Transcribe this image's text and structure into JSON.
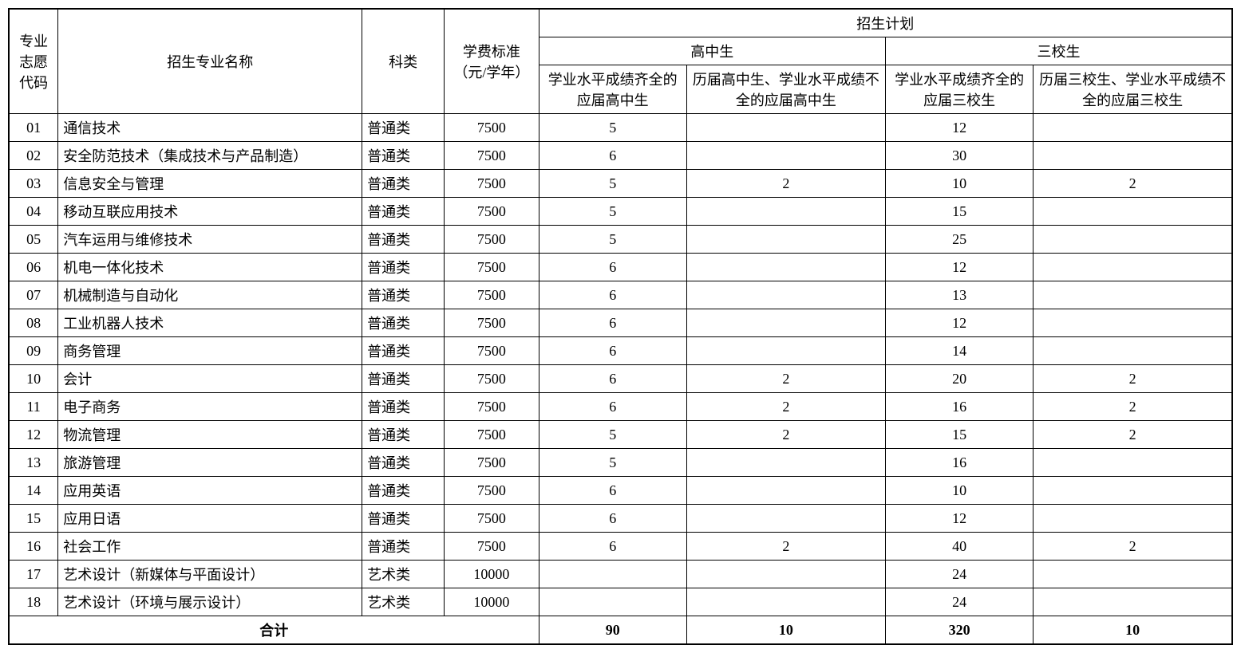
{
  "headers": {
    "code": "专业志愿代码",
    "name": "招生专业名称",
    "type": "科类",
    "fee": "学费标准（元/学年）",
    "plan": "招生计划",
    "hs": "高中生",
    "sx": "三校生",
    "hs_full": "学业水平成绩齐全的应届高中生",
    "hs_part": "历届高中生、学业水平成绩不全的应届高中生",
    "sx_full": "学业水平成绩齐全的应届三校生",
    "sx_part": "历届三校生、学业水平成绩不全的应届三校生",
    "total": "合计"
  },
  "rows": [
    {
      "code": "01",
      "name": "通信技术",
      "type": "普通类",
      "fee": "7500",
      "c1": "5",
      "c2": "",
      "c3": "12",
      "c4": ""
    },
    {
      "code": "02",
      "name": "安全防范技术（集成技术与产品制造）",
      "type": "普通类",
      "fee": "7500",
      "c1": "6",
      "c2": "",
      "c3": "30",
      "c4": ""
    },
    {
      "code": "03",
      "name": "信息安全与管理",
      "type": "普通类",
      "fee": "7500",
      "c1": "5",
      "c2": "2",
      "c3": "10",
      "c4": "2"
    },
    {
      "code": "04",
      "name": "移动互联应用技术",
      "type": "普通类",
      "fee": "7500",
      "c1": "5",
      "c2": "",
      "c3": "15",
      "c4": ""
    },
    {
      "code": "05",
      "name": "汽车运用与维修技术",
      "type": "普通类",
      "fee": "7500",
      "c1": "5",
      "c2": "",
      "c3": "25",
      "c4": ""
    },
    {
      "code": "06",
      "name": "机电一体化技术",
      "type": "普通类",
      "fee": "7500",
      "c1": "6",
      "c2": "",
      "c3": "12",
      "c4": ""
    },
    {
      "code": "07",
      "name": "机械制造与自动化",
      "type": "普通类",
      "fee": "7500",
      "c1": "6",
      "c2": "",
      "c3": "13",
      "c4": ""
    },
    {
      "code": "08",
      "name": "工业机器人技术",
      "type": "普通类",
      "fee": "7500",
      "c1": "6",
      "c2": "",
      "c3": "12",
      "c4": ""
    },
    {
      "code": "09",
      "name": "商务管理",
      "type": "普通类",
      "fee": "7500",
      "c1": "6",
      "c2": "",
      "c3": "14",
      "c4": ""
    },
    {
      "code": "10",
      "name": "会计",
      "type": "普通类",
      "fee": "7500",
      "c1": "6",
      "c2": "2",
      "c3": "20",
      "c4": "2"
    },
    {
      "code": "11",
      "name": "电子商务",
      "type": "普通类",
      "fee": "7500",
      "c1": "6",
      "c2": "2",
      "c3": "16",
      "c4": "2"
    },
    {
      "code": "12",
      "name": "物流管理",
      "type": "普通类",
      "fee": "7500",
      "c1": "5",
      "c2": "2",
      "c3": "15",
      "c4": "2"
    },
    {
      "code": "13",
      "name": "旅游管理",
      "type": "普通类",
      "fee": "7500",
      "c1": "5",
      "c2": "",
      "c3": "16",
      "c4": ""
    },
    {
      "code": "14",
      "name": "应用英语",
      "type": "普通类",
      "fee": "7500",
      "c1": "6",
      "c2": "",
      "c3": "10",
      "c4": ""
    },
    {
      "code": "15",
      "name": "应用日语",
      "type": "普通类",
      "fee": "7500",
      "c1": "6",
      "c2": "",
      "c3": "12",
      "c4": ""
    },
    {
      "code": "16",
      "name": "社会工作",
      "type": "普通类",
      "fee": "7500",
      "c1": "6",
      "c2": "2",
      "c3": "40",
      "c4": "2"
    },
    {
      "code": "17",
      "name": "艺术设计（新媒体与平面设计）",
      "type": "艺术类",
      "fee": "10000",
      "c1": "",
      "c2": "",
      "c3": "24",
      "c4": ""
    },
    {
      "code": "18",
      "name": "艺术设计（环境与展示设计）",
      "type": "艺术类",
      "fee": "10000",
      "c1": "",
      "c2": "",
      "c3": "24",
      "c4": ""
    }
  ],
  "totals": {
    "c1": "90",
    "c2": "10",
    "c3": "320",
    "c4": "10"
  }
}
